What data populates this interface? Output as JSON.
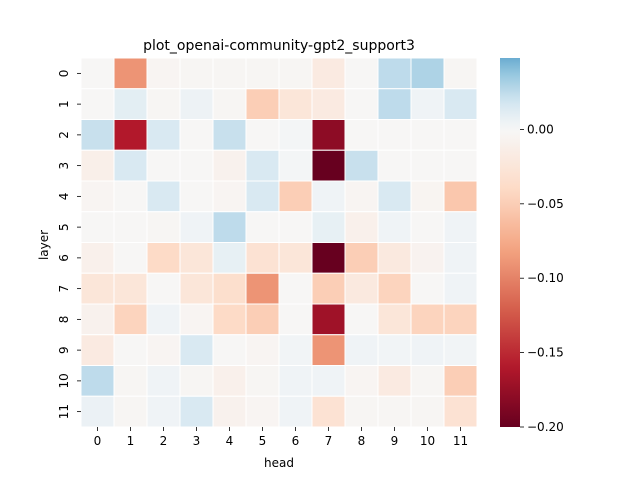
{
  "chart_data": {
    "type": "heatmap",
    "title": "plot_openai-community-gpt2_support3",
    "xlabel": "head",
    "ylabel": "layer",
    "x_categories": [
      "0",
      "1",
      "2",
      "3",
      "4",
      "5",
      "6",
      "7",
      "8",
      "9",
      "10",
      "11"
    ],
    "y_categories": [
      "0",
      "1",
      "2",
      "3",
      "4",
      "5",
      "6",
      "7",
      "8",
      "9",
      "10",
      "11"
    ],
    "colormap": "RdBu",
    "vmin": -0.2,
    "vmax": 0.048,
    "colorbar_ticks": [
      0.0,
      -0.05,
      -0.1,
      -0.15,
      -0.2
    ],
    "colorbar_tick_labels": [
      "0.00",
      "−0.05",
      "−0.10",
      "−0.15",
      "−0.20"
    ],
    "values": [
      [
        -0.002,
        -0.09,
        -0.004,
        -0.003,
        -0.003,
        -0.003,
        -0.003,
        -0.018,
        -0.002,
        0.025,
        0.03,
        -0.003
      ],
      [
        -0.002,
        0.01,
        -0.003,
        0.005,
        -0.003,
        -0.05,
        -0.025,
        -0.018,
        -0.002,
        0.025,
        0.004,
        0.015
      ],
      [
        0.022,
        -0.16,
        0.015,
        -0.002,
        0.022,
        -0.002,
        0.002,
        -0.18,
        -0.002,
        -0.002,
        -0.002,
        -0.002
      ],
      [
        -0.012,
        0.015,
        -0.002,
        -0.002,
        -0.008,
        0.015,
        0.002,
        -0.2,
        0.022,
        -0.002,
        -0.002,
        -0.002
      ],
      [
        -0.004,
        -0.002,
        0.015,
        -0.002,
        -0.004,
        0.015,
        -0.05,
        0.004,
        -0.004,
        0.015,
        -0.005,
        -0.055
      ],
      [
        -0.002,
        -0.002,
        -0.003,
        0.004,
        0.025,
        -0.002,
        -0.002,
        0.008,
        -0.01,
        0.004,
        -0.002,
        0.004
      ],
      [
        -0.01,
        -0.002,
        -0.04,
        -0.025,
        0.008,
        -0.03,
        -0.025,
        -0.2,
        -0.05,
        -0.02,
        -0.007,
        0.004
      ],
      [
        -0.025,
        -0.025,
        -0.002,
        -0.025,
        -0.035,
        -0.09,
        -0.002,
        -0.05,
        -0.02,
        -0.045,
        -0.002,
        0.004
      ],
      [
        -0.008,
        -0.045,
        0.004,
        -0.004,
        -0.04,
        -0.05,
        -0.002,
        -0.17,
        -0.002,
        -0.025,
        -0.045,
        -0.045
      ],
      [
        -0.018,
        -0.002,
        -0.004,
        0.015,
        -0.002,
        -0.004,
        0.003,
        -0.09,
        0.004,
        0.003,
        0.004,
        0.003
      ],
      [
        0.025,
        -0.003,
        0.004,
        -0.003,
        -0.01,
        -0.003,
        0.004,
        0.004,
        -0.004,
        -0.018,
        -0.003,
        -0.05
      ],
      [
        0.006,
        -0.003,
        0.004,
        0.015,
        -0.008,
        -0.004,
        0.004,
        -0.03,
        -0.003,
        -0.003,
        -0.003,
        -0.03
      ]
    ]
  }
}
